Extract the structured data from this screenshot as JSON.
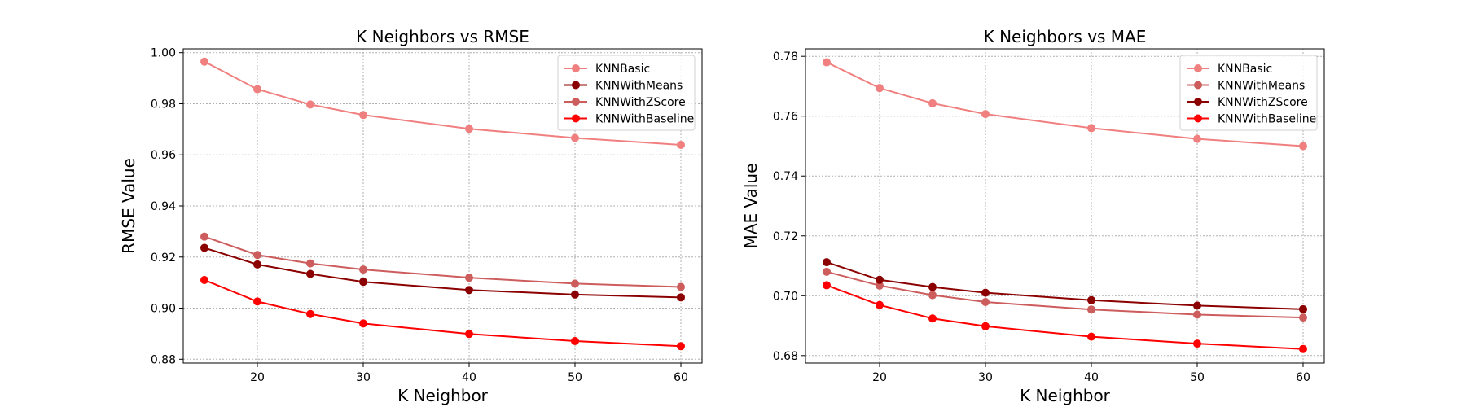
{
  "chart_data": [
    {
      "type": "line",
      "title": "K Neighbors vs RMSE",
      "xlabel": "K Neighbor",
      "ylabel": "RMSE Value",
      "x": [
        15,
        20,
        25,
        30,
        40,
        50,
        60
      ],
      "xticks": [
        "20",
        "30",
        "40",
        "50",
        "60"
      ],
      "yticks": [
        "0.88",
        "0.90",
        "0.92",
        "0.94",
        "0.96",
        "0.98",
        "1.00"
      ],
      "xlim": [
        13,
        62
      ],
      "ylim": [
        0.8785,
        1.0015
      ],
      "grid": true,
      "legend_position": "top-right",
      "series": [
        {
          "name": "KNNBasic",
          "color": "#f08080",
          "values": [
            0.9965,
            0.9857,
            0.9797,
            0.9756,
            0.9702,
            0.9666,
            0.9639
          ]
        },
        {
          "name": "KNNWithMeans",
          "color": "#8b0000",
          "values": [
            0.9236,
            0.9171,
            0.9134,
            0.9103,
            0.9071,
            0.9053,
            0.9042
          ]
        },
        {
          "name": "KNNWithZScore",
          "color": "#cd5c5c",
          "values": [
            0.928,
            0.9208,
            0.9175,
            0.9151,
            0.9119,
            0.9096,
            0.9083
          ]
        },
        {
          "name": "KNNWithBaseline",
          "color": "#ff0000",
          "values": [
            0.911,
            0.9026,
            0.8977,
            0.894,
            0.8899,
            0.8871,
            0.8851
          ]
        }
      ]
    },
    {
      "type": "line",
      "title": "K Neighbors vs MAE",
      "xlabel": "K Neighbor",
      "ylabel": "MAE Value",
      "x": [
        15,
        20,
        25,
        30,
        40,
        50,
        60
      ],
      "xticks": [
        "20",
        "30",
        "40",
        "50",
        "60"
      ],
      "yticks": [
        "0.68",
        "0.70",
        "0.72",
        "0.74",
        "0.76",
        "0.78"
      ],
      "xlim": [
        13,
        62
      ],
      "ylim": [
        0.6775,
        0.7825
      ],
      "grid": true,
      "legend_position": "top-right",
      "series": [
        {
          "name": "KNNBasic",
          "color": "#f08080",
          "values": [
            0.778,
            0.7694,
            0.7643,
            0.7607,
            0.756,
            0.7524,
            0.75
          ]
        },
        {
          "name": "KNNWithMeans",
          "color": "#cd5c5c",
          "values": [
            0.708,
            0.7034,
            0.7002,
            0.6979,
            0.6954,
            0.6937,
            0.6927
          ]
        },
        {
          "name": "KNNWithZScore",
          "color": "#8b0000",
          "values": [
            0.7112,
            0.7053,
            0.7029,
            0.701,
            0.6985,
            0.6967,
            0.6955
          ]
        },
        {
          "name": "KNNWithBaseline",
          "color": "#ff0000",
          "values": [
            0.7035,
            0.6969,
            0.6924,
            0.6898,
            0.6863,
            0.684,
            0.6822
          ]
        }
      ]
    }
  ]
}
